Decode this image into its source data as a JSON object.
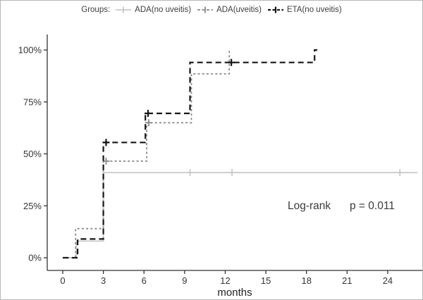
{
  "chart_data": {
    "type": "line",
    "subtype": "kaplan-meier-step",
    "title": "",
    "legend_title": "Groups:",
    "xlabel": "months",
    "ylabel": "",
    "x_ticks": [
      0,
      3,
      6,
      9,
      12,
      15,
      18,
      21,
      24
    ],
    "y_ticks": [
      {
        "value": 0,
        "label": "0%"
      },
      {
        "value": 25,
        "label": "25%"
      },
      {
        "value": 50,
        "label": "50%"
      },
      {
        "value": 75,
        "label": "75%"
      },
      {
        "value": 100,
        "label": "100%"
      }
    ],
    "xlim": [
      0,
      26.5
    ],
    "ylim": [
      0,
      100
    ],
    "grid": false,
    "legend_position": "top",
    "annotation": {
      "text1": "Log-rank",
      "text2": "p = 0.011",
      "color": "#3a3a3a"
    },
    "axis_color": "#333333",
    "tick_label_color": "#333333",
    "series": [
      {
        "name": "ADA(no uveitis)",
        "color": "#c9c9c9",
        "dash": "solid",
        "width": 1.8,
        "points": [
          [
            0,
            0
          ],
          [
            1,
            0
          ],
          [
            1,
            8
          ],
          [
            3,
            8
          ],
          [
            3,
            41
          ],
          [
            26.2,
            41
          ]
        ],
        "censors": [
          [
            9.4,
            41
          ],
          [
            12.5,
            41
          ],
          [
            24.9,
            41
          ]
        ]
      },
      {
        "name": "ADA(uveitis)",
        "color": "#8a8a8a",
        "dash": "3,3.2",
        "width": 1.8,
        "points": [
          [
            0,
            0
          ],
          [
            0.95,
            0
          ],
          [
            0.95,
            14
          ],
          [
            3,
            14
          ],
          [
            3,
            46.5
          ],
          [
            6.2,
            46.5
          ],
          [
            6.2,
            65
          ],
          [
            9.5,
            65
          ],
          [
            9.5,
            88.5
          ],
          [
            12.3,
            88.5
          ],
          [
            12.3,
            100
          ]
        ],
        "censors": [
          [
            3.2,
            46.5
          ],
          [
            6.35,
            65
          ]
        ]
      },
      {
        "name": "ETA(no uveitis)",
        "color": "#161616",
        "dash": "8,5",
        "width": 2.2,
        "points": [
          [
            0,
            0
          ],
          [
            1.1,
            0
          ],
          [
            1.1,
            9
          ],
          [
            3,
            9
          ],
          [
            3,
            55.5
          ],
          [
            6.1,
            55.5
          ],
          [
            6.1,
            69.5
          ],
          [
            9.4,
            69.5
          ],
          [
            9.4,
            94
          ],
          [
            18.6,
            94
          ],
          [
            18.6,
            100
          ],
          [
            18.8,
            100
          ]
        ],
        "censors": [
          [
            3.2,
            55.5
          ],
          [
            6.3,
            69.5
          ],
          [
            12.45,
            94
          ]
        ]
      }
    ]
  }
}
